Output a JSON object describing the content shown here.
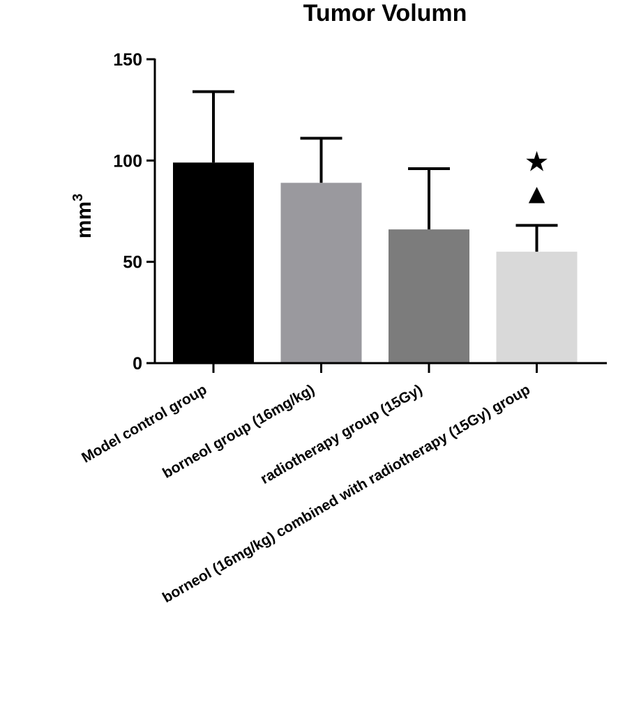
{
  "chart_data": {
    "type": "bar",
    "title": "Tumor Volumn",
    "xlabel": "",
    "ylabel": "mm",
    "ylabel_superscript": "3",
    "ylim": [
      0,
      150
    ],
    "yticks": [
      0,
      50,
      100,
      150
    ],
    "grid": false,
    "legend": "none",
    "categories": [
      "Model control group",
      "borneol group (16mg/kg)",
      "radiotherapy group (15Gy)",
      "borneol (16mg/kg) combined with radiotherapy (15Gy) group"
    ],
    "values": [
      99,
      89,
      66,
      55
    ],
    "error_upper": [
      134,
      111,
      96,
      68
    ],
    "colors": [
      "#000000",
      "#9a999e",
      "#7c7c7c",
      "#d9d9d9"
    ],
    "annotations": [
      {
        "category_index": 3,
        "symbols": [
          "★",
          "▲"
        ]
      }
    ]
  }
}
